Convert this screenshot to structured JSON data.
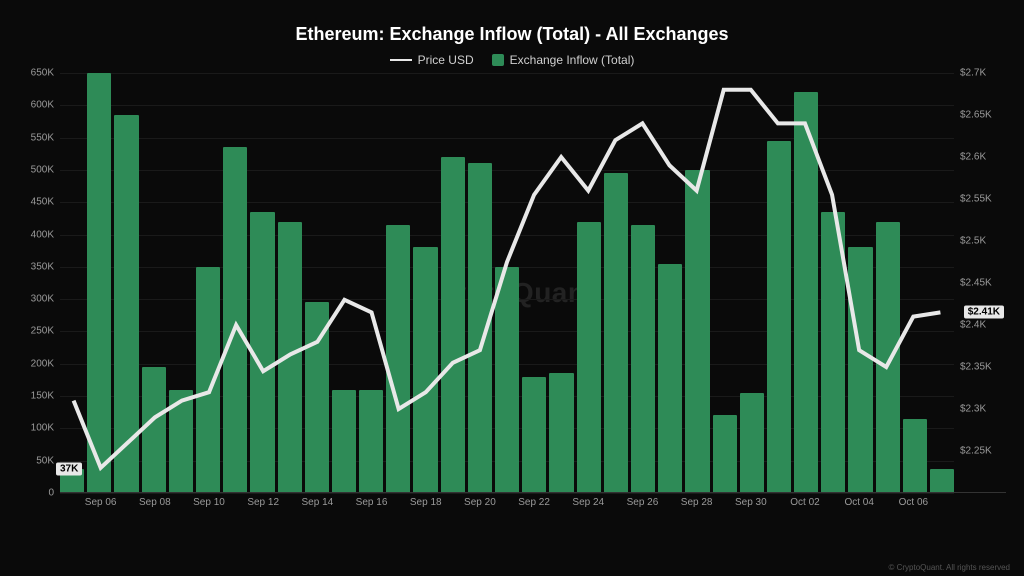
{
  "chart": {
    "type": "bar+line",
    "title": "Ethereum: Exchange Inflow (Total) - All Exchanges",
    "title_fontsize": 18,
    "title_color": "#ffffff",
    "background_color": "#0a0a0a",
    "grid_color": "#1a1a1a",
    "axis_text_color": "#9a9a9a",
    "axis_fontsize": 10,
    "watermark": "CryptoQuant",
    "footer": "© CryptoQuant. All rights reserved",
    "legend": {
      "items": [
        {
          "label": "Price USD",
          "type": "line",
          "color": "#e8e8e8"
        },
        {
          "label": "Exchange Inflow (Total)",
          "type": "box",
          "color": "#2e8b57"
        }
      ],
      "fontsize": 12,
      "text_color": "#d0d0d0"
    },
    "y_left": {
      "min": 0,
      "max": 650000,
      "ticks": [
        0,
        50000,
        100000,
        150000,
        200000,
        250000,
        300000,
        350000,
        400000,
        450000,
        500000,
        550000,
        600000,
        650000
      ],
      "labels": [
        "0",
        "50K",
        "100K",
        "150K",
        "200K",
        "250K",
        "300K",
        "350K",
        "400K",
        "450K",
        "500K",
        "550K",
        "600K",
        "650K"
      ]
    },
    "y_right": {
      "min": 2200,
      "max": 2700,
      "ticks": [
        2250,
        2300,
        2350,
        2400,
        2450,
        2500,
        2550,
        2600,
        2650,
        2700
      ],
      "labels": [
        "$2.25K",
        "$2.3K",
        "$2.35K",
        "$2.4K",
        "$2.45K",
        "$2.5K",
        "$2.55K",
        "$2.6K",
        "$2.65K",
        "$2.7K"
      ]
    },
    "x_axis": {
      "tick_positions": [
        1,
        3,
        5,
        7,
        9,
        11,
        13,
        15,
        17,
        19,
        21,
        23,
        25,
        27,
        29,
        31
      ],
      "labels": [
        "Sep 06",
        "Sep 08",
        "Sep 10",
        "Sep 12",
        "Sep 14",
        "Sep 16",
        "Sep 18",
        "Sep 20",
        "Sep 22",
        "Sep 24",
        "Sep 26",
        "Sep 28",
        "Sep 30",
        "Oct 02",
        "Oct 04",
        "Oct 06"
      ]
    },
    "bars": {
      "color": "#2e8b57",
      "values": [
        37000,
        650000,
        585000,
        195000,
        160000,
        350000,
        535000,
        435000,
        420000,
        295000,
        160000,
        160000,
        415000,
        380000,
        520000,
        510000,
        350000,
        180000,
        185000,
        420000,
        495000,
        415000,
        355000,
        500000,
        120000,
        155000,
        545000,
        620000,
        435000,
        380000,
        420000,
        115000,
        37000
      ],
      "first_bar_label": "37K"
    },
    "line": {
      "color": "#e8e8e8",
      "width": 1.5,
      "values": [
        2310,
        2230,
        2260,
        2290,
        2310,
        2320,
        2400,
        2345,
        2365,
        2380,
        2430,
        2415,
        2300,
        2320,
        2355,
        2370,
        2475,
        2555,
        2600,
        2560,
        2620,
        2640,
        2590,
        2560,
        2680,
        2680,
        2640,
        2640,
        2555,
        2370,
        2350,
        2410,
        2415
      ],
      "end_label": "$2.41K"
    }
  }
}
